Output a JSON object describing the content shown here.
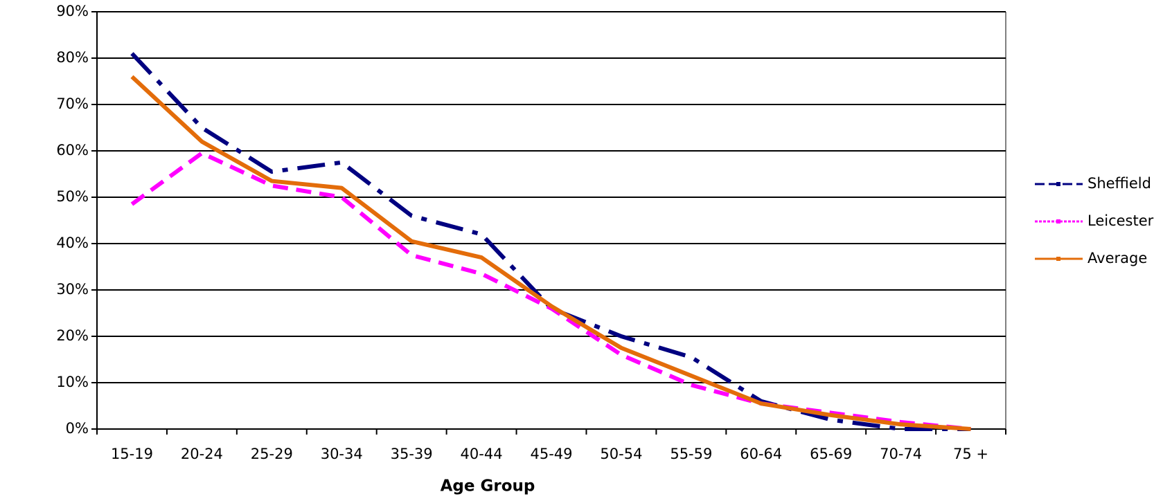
{
  "chart_data": {
    "type": "line",
    "x_label": "Age Group",
    "categories": [
      "15-19",
      "20-24",
      "25-29",
      "30-34",
      "35-39",
      "40-44",
      "45-49",
      "50-54",
      "55-59",
      "60-64",
      "65-69",
      "70-74",
      "75 +"
    ],
    "series": [
      {
        "name": "Sheffield",
        "color": "#000080",
        "values": [
          81,
          65,
          55.5,
          57.5,
          46,
          42,
          26,
          20,
          15.5,
          6,
          2,
          0,
          0
        ]
      },
      {
        "name": "Leicester",
        "color": "#ff00ff",
        "values": [
          48.5,
          59.5,
          52.5,
          50,
          37.5,
          33.5,
          26,
          16,
          9.5,
          5.5,
          3.5,
          1.5,
          0
        ]
      },
      {
        "name": "Average",
        "color": "#e36c0a",
        "values": [
          76,
          62,
          53.5,
          52,
          40.5,
          37,
          26.5,
          17.5,
          11.5,
          5.5,
          3,
          1,
          0
        ]
      }
    ],
    "ylim": [
      0,
      90
    ],
    "yticks": [
      {
        "value": 0,
        "label": "0%"
      },
      {
        "value": 10,
        "label": "10%"
      },
      {
        "value": 20,
        "label": "20%"
      },
      {
        "value": 30,
        "label": "30%"
      },
      {
        "value": 40,
        "label": "40%"
      },
      {
        "value": 50,
        "label": "50%"
      },
      {
        "value": 60,
        "label": "60%"
      },
      {
        "value": 70,
        "label": "70%"
      },
      {
        "value": 80,
        "label": "80%"
      },
      {
        "value": 90,
        "label": "90%"
      }
    ],
    "grid": true,
    "legend": "right"
  }
}
